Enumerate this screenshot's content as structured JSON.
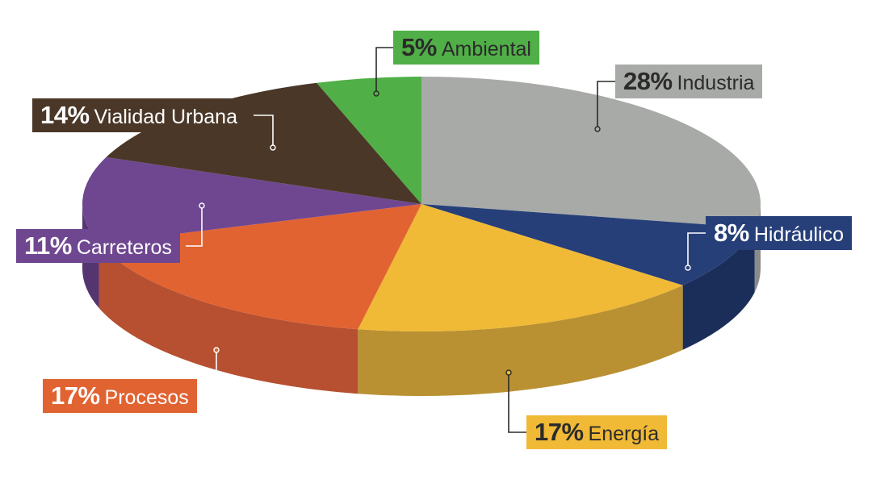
{
  "chart_data": {
    "type": "pie",
    "style": "3d",
    "slices": [
      {
        "label": "Industria",
        "value": 28,
        "pct_text": "28%",
        "color": "#a8aaa7",
        "side_color": "#8a8c89",
        "text_theme": "dark"
      },
      {
        "label": "Hidráulico",
        "value": 8,
        "pct_text": "8%",
        "color": "#263f79",
        "side_color": "#1b2e5a",
        "text_theme": "light"
      },
      {
        "label": "Energía",
        "value": 17,
        "pct_text": "17%",
        "color": "#f0b936",
        "side_color": "#b99132",
        "text_theme": "dark"
      },
      {
        "label": "Procesos",
        "value": 17,
        "pct_text": "17%",
        "color": "#e16332",
        "side_color": "#b65030",
        "text_theme": "light"
      },
      {
        "label": "Carreteros",
        "value": 11,
        "pct_text": "11%",
        "color": "#6f4790",
        "side_color": "#553570",
        "text_theme": "light"
      },
      {
        "label": "Vialidad Urbana",
        "value": 14,
        "pct_text": "14%",
        "color": "#4a3727",
        "side_color": "#372819",
        "text_theme": "light"
      },
      {
        "label": "Ambiental",
        "value": 5,
        "pct_text": "5%",
        "color": "#50af47",
        "side_color": "#3e8a38",
        "text_theme": "dark"
      }
    ]
  }
}
